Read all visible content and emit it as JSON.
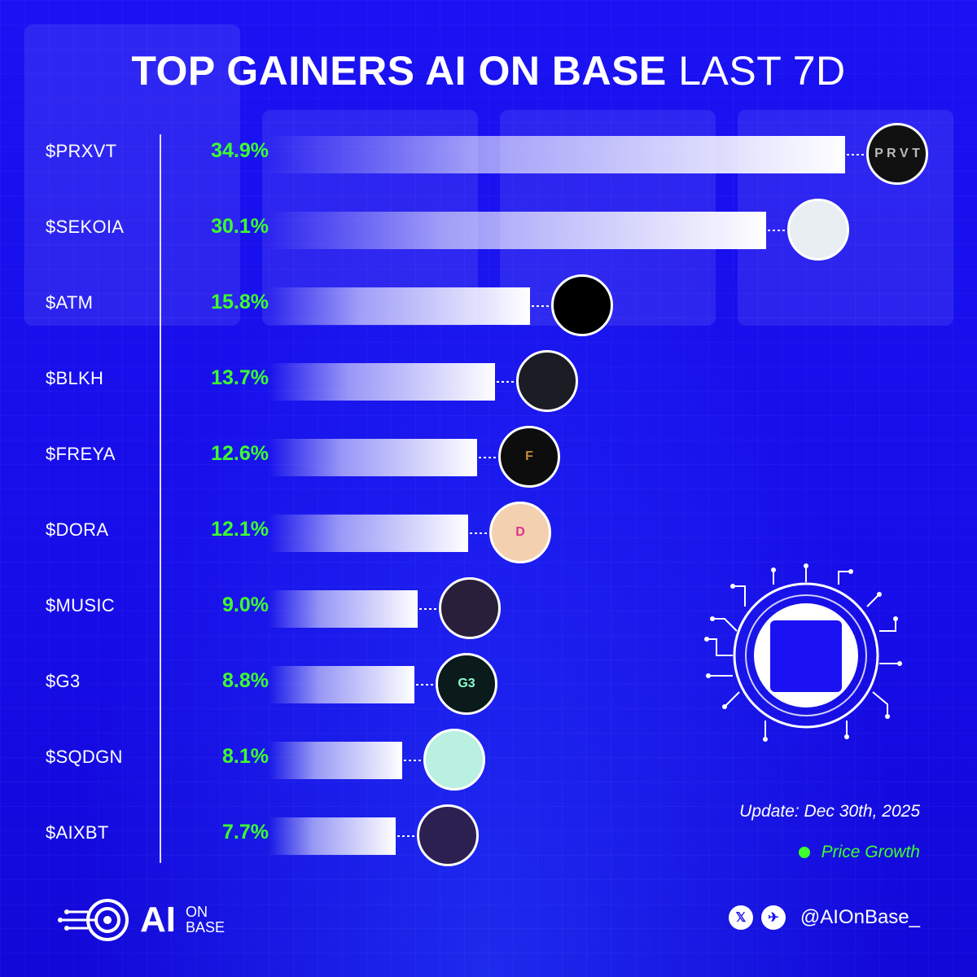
{
  "title": {
    "bold": "TOP GAINERS AI ON BASE",
    "light": "LAST 7D"
  },
  "chart_data": {
    "type": "bar",
    "orientation": "horizontal",
    "title": "TOP GAINERS AI ON BASE LAST 7D",
    "categories": [
      "$PRXVT",
      "$SEKOIA",
      "$ATM",
      "$BLKH",
      "$FREYA",
      "$DORA",
      "$MUSIC",
      "$G3",
      "$SQDGN",
      "$AIXBT"
    ],
    "values": [
      34.9,
      30.1,
      15.8,
      13.7,
      12.6,
      12.1,
      9.0,
      8.8,
      8.1,
      7.7
    ],
    "value_labels": [
      "34.9%",
      "30.1%",
      "15.8%",
      "13.7%",
      "12.6%",
      "12.1%",
      "9.0%",
      "8.8%",
      "8.1%",
      "7.7%"
    ],
    "legend": [
      {
        "name": "Price Growth",
        "color": "#3dff2e"
      }
    ],
    "legend_position": "bottom-right"
  },
  "icons": [
    {
      "name": "prxvt-logo-icon",
      "text": "P R V T",
      "bg": "#111111",
      "fg": "#bbbbbb"
    },
    {
      "name": "sekoia-logo-icon",
      "text": "",
      "bg": "#e8eef2",
      "fg": "#4a5a66"
    },
    {
      "name": "atm-logo-icon",
      "text": "",
      "bg": "#000000",
      "fg": "#1f6fff"
    },
    {
      "name": "blkh-logo-icon",
      "text": "",
      "bg": "#1c1c24",
      "fg": "#7bd7ff"
    },
    {
      "name": "freya-logo-icon",
      "text": "F",
      "bg": "#0d0d0d",
      "fg": "#c98a3c"
    },
    {
      "name": "dora-logo-icon",
      "text": "D",
      "bg": "#f3d1b0",
      "fg": "#e0308a"
    },
    {
      "name": "music-logo-icon",
      "text": "",
      "bg": "#2a1f3a",
      "fg": "#ff7ad9"
    },
    {
      "name": "g3-logo-icon",
      "text": "G3",
      "bg": "#0b1a1a",
      "fg": "#8affd0"
    },
    {
      "name": "sqdgn-logo-icon",
      "text": "",
      "bg": "#b9f0e0",
      "fg": "#111111"
    },
    {
      "name": "aixbt-logo-icon",
      "text": "",
      "bg": "#2b2050",
      "fg": "#9b8cff"
    }
  ],
  "update_text": "Update: Dec 30th, 2025",
  "legend_label": "Price Growth",
  "brand": {
    "ai": "AI",
    "line1": "ON",
    "line2": "BASE"
  },
  "social": {
    "x_icon": "𝕏",
    "telegram_icon": "✈",
    "handle": "@AIOnBase_"
  },
  "colors": {
    "background": "#1a12f2",
    "accent_green": "#3dff2e",
    "bar": "#ffffff"
  }
}
